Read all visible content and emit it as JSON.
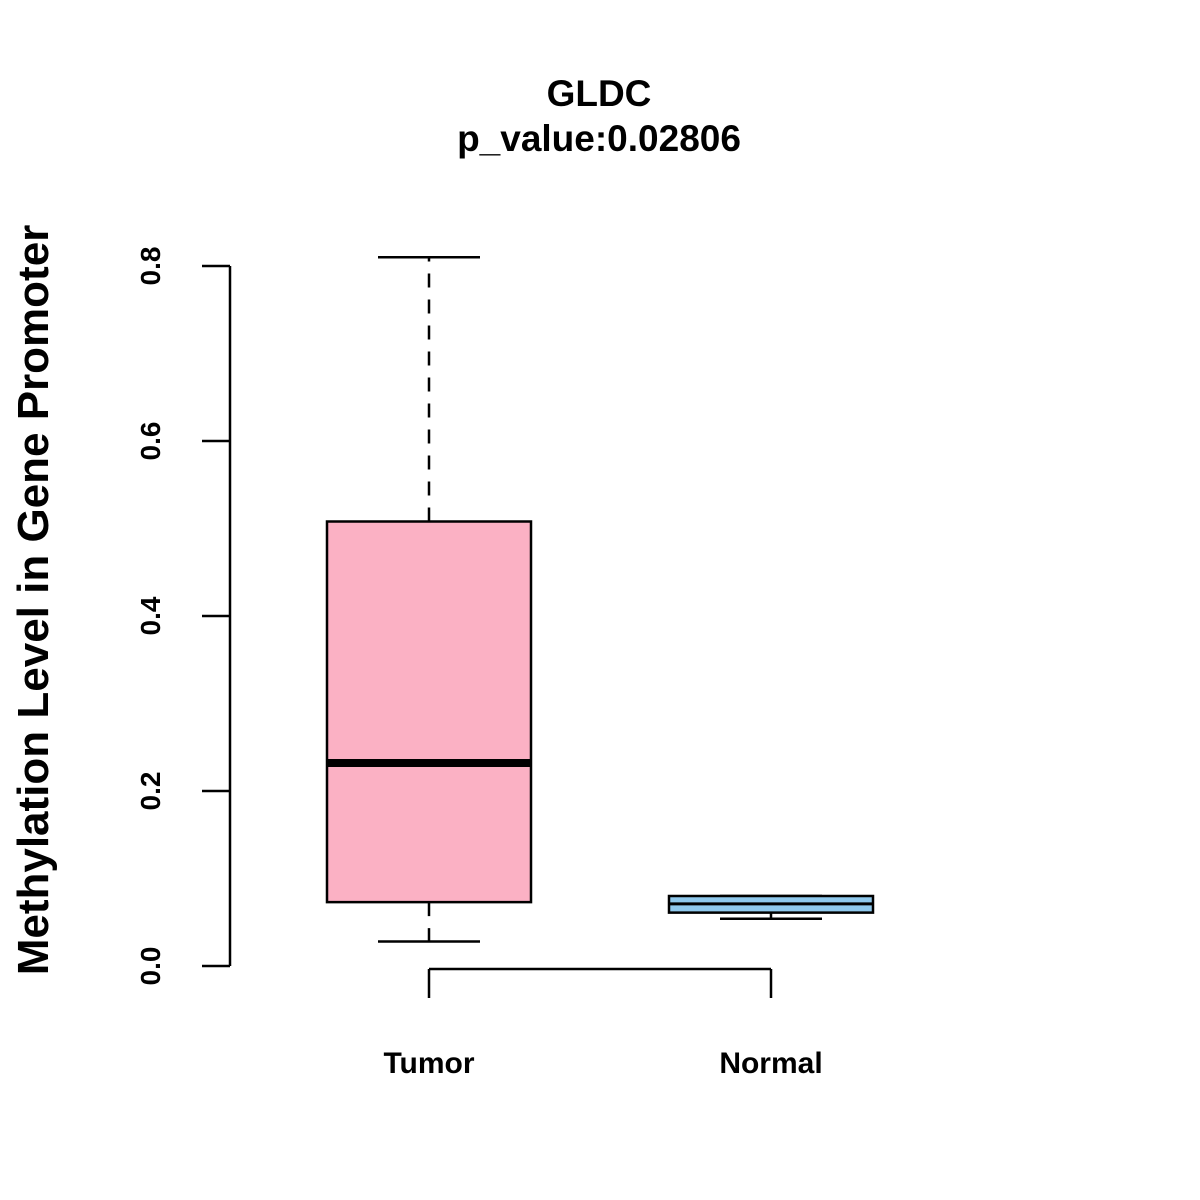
{
  "chart_data": {
    "type": "boxplot",
    "title": "GLDC",
    "subtitle": "p_value:0.02806",
    "xlabel": "",
    "ylabel": "Methylation Level in Gene Promoter",
    "ylim": [
      0.0,
      0.8
    ],
    "yticks": [
      "0.0",
      "0.2",
      "0.4",
      "0.6",
      "0.8"
    ],
    "yticks_values": [
      0.0,
      0.2,
      0.4,
      0.6,
      0.8
    ],
    "categories": [
      "Tumor",
      "Normal"
    ],
    "boxes": [
      {
        "name": "Tumor",
        "color": "#FBB1C4",
        "min": 0.028,
        "q1": 0.073,
        "median": 0.232,
        "q3": 0.508,
        "max": 0.81
      },
      {
        "name": "Normal",
        "color": "#8FC8EC",
        "min": 0.054,
        "q1": 0.061,
        "median": 0.071,
        "q3": 0.08,
        "max": 0.08
      }
    ],
    "comparison_bracket": [
      "Tumor",
      "Normal"
    ],
    "grid": false
  }
}
